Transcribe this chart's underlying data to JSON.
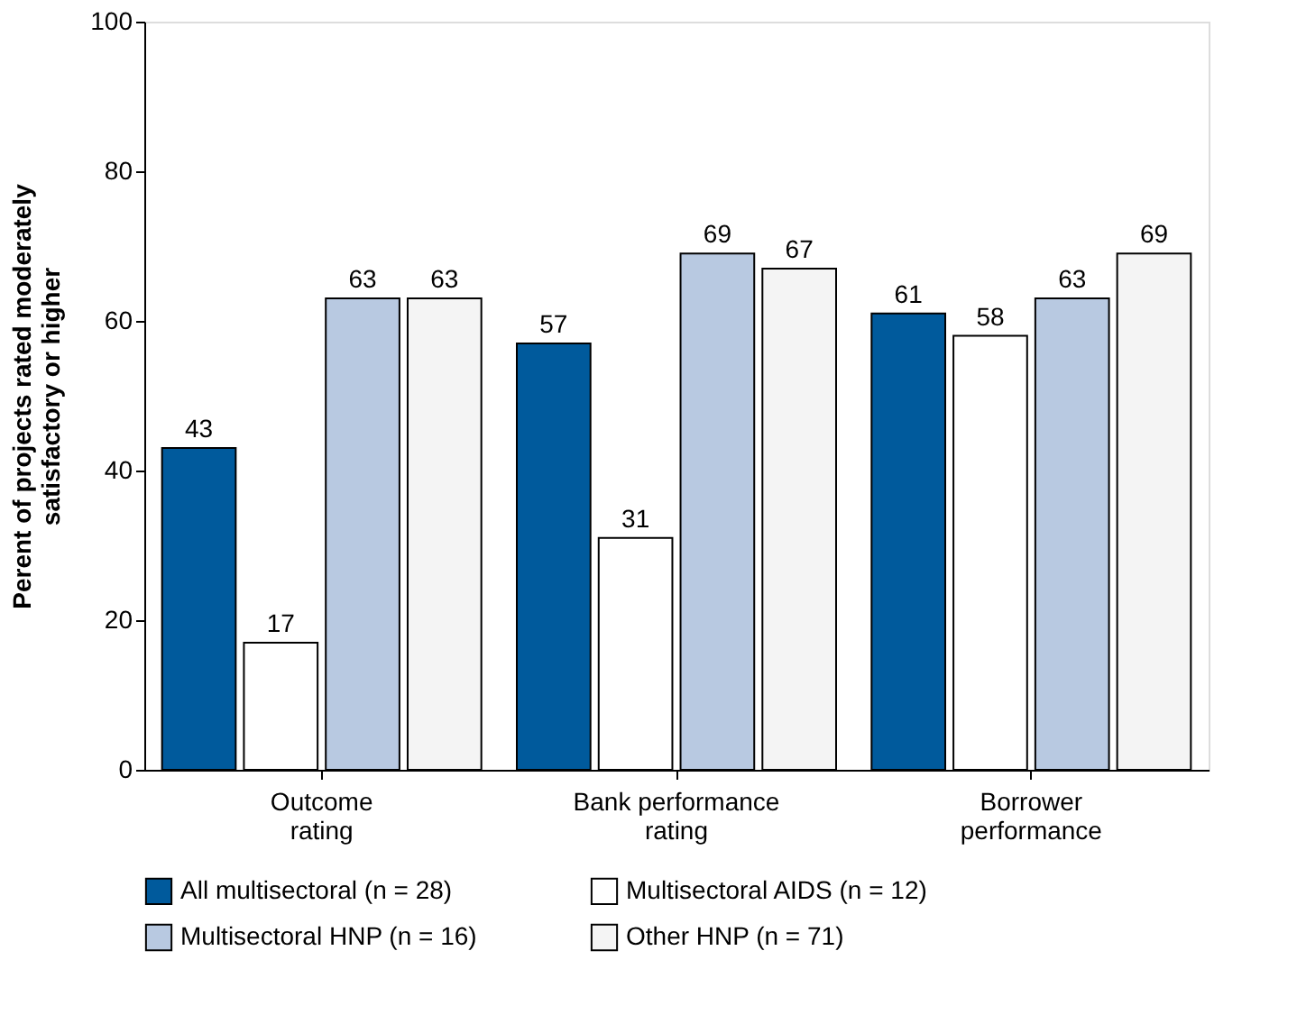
{
  "chart_data": {
    "type": "bar",
    "categories": [
      "Outcome\nrating",
      "Bank performance\nrating",
      "Borrower\nperformance"
    ],
    "series": [
      {
        "name": "All multisectoral (n = 28)",
        "color": "#005a9c",
        "values": [
          43,
          57,
          61
        ]
      },
      {
        "name": "Multisectoral AIDS (n = 12)",
        "color": "#ffffff",
        "values": [
          17,
          31,
          58
        ]
      },
      {
        "name": "Multisectoral HNP (n = 16)",
        "color": "#b8c9e1",
        "values": [
          63,
          69,
          63
        ]
      },
      {
        "name": "Other HNP (n = 71)",
        "color": "#f4f4f4",
        "values": [
          63,
          67,
          69
        ]
      }
    ],
    "ylabel": "Perent of projects rated moderately\nsatisfactory or higher",
    "ylim": [
      0,
      100
    ],
    "yticks": [
      0,
      20,
      40,
      60,
      80,
      100
    ],
    "data_labels": true,
    "grid": false,
    "legend": "bottom"
  }
}
